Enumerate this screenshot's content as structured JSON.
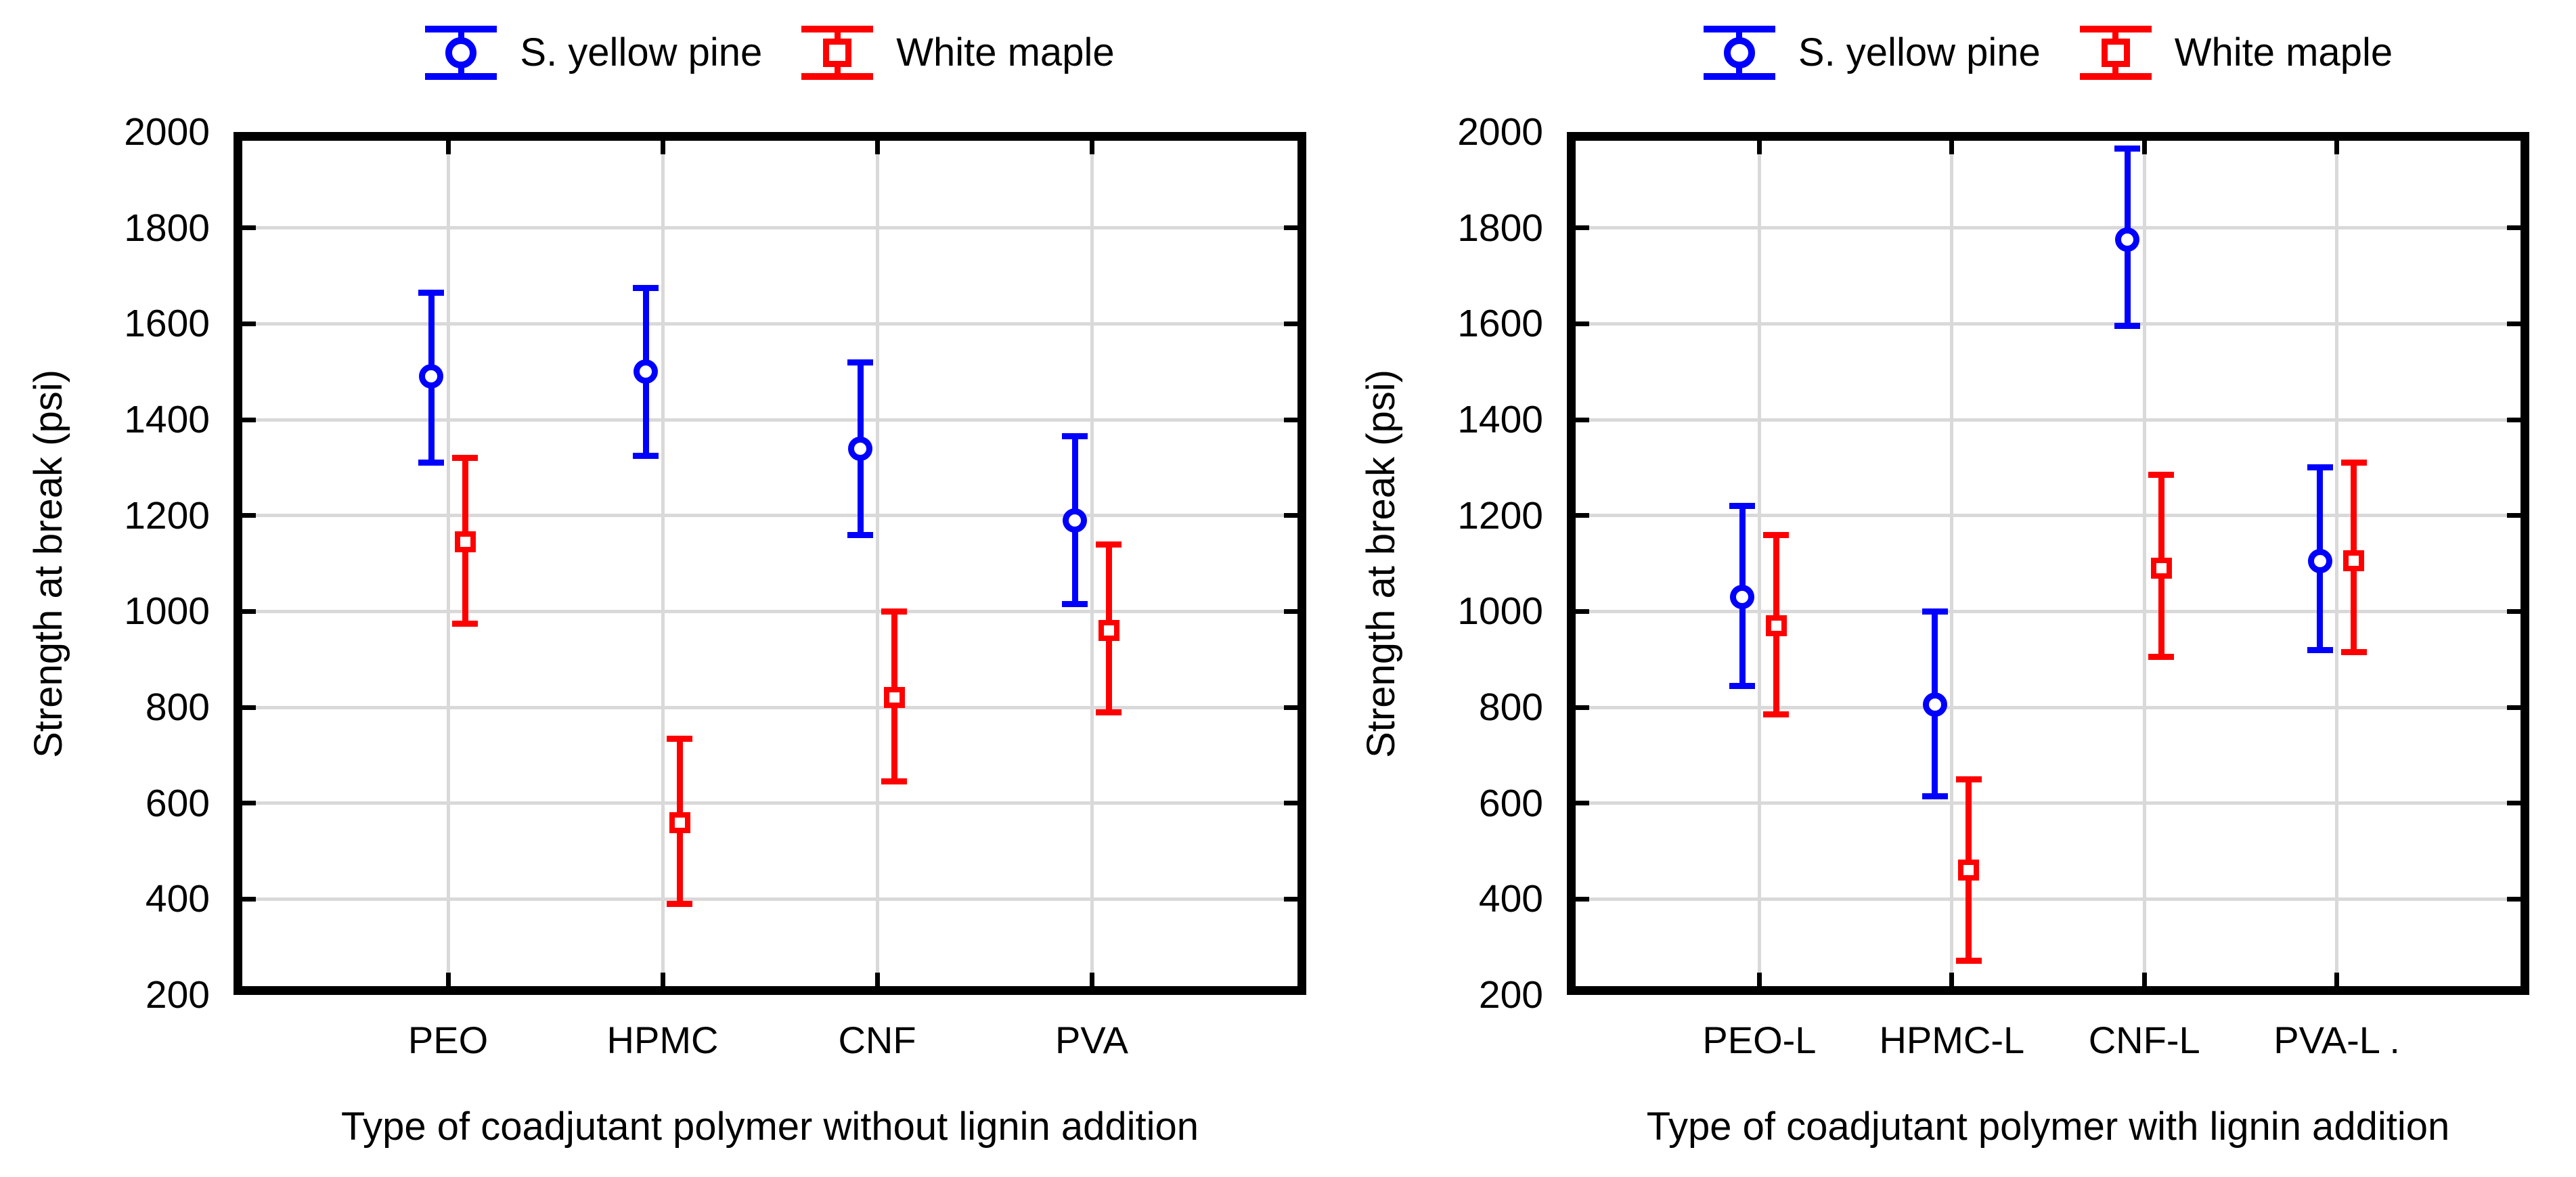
{
  "figure": {
    "background": "#ffffff",
    "text_color": "#000000",
    "grid_color": "#d9d9d9",
    "frame_color": "#000000"
  },
  "legend": {
    "items": [
      {
        "label": "S. yellow pine",
        "color": "#0000ff",
        "marker": "circle"
      },
      {
        "label": "White maple",
        "color": "#ff0000",
        "marker": "square"
      }
    ]
  },
  "chart_data": [
    {
      "type": "scatter",
      "subtype": "mean-with-error-bars",
      "title": "",
      "xlabel": "Type of coadjutant polymer without lignin addition",
      "ylabel": "Strength at break (psi)",
      "ylim": [
        200,
        2000
      ],
      "y_step": 200,
      "y_ticks": [
        "2000",
        "1800",
        "1600",
        "1400",
        "1200",
        "1000",
        "800",
        "600",
        "400",
        "200"
      ],
      "grid": true,
      "legend_position": "top-center",
      "categories": [
        "PEO",
        "HPMC",
        "CNF",
        "PVA"
      ],
      "series": [
        {
          "name": "S. yellow pine",
          "marker": "circle",
          "color": "#0000ff",
          "points": [
            {
              "category": "PEO",
              "mean": 1490,
              "lo": 1310,
              "hi": 1665
            },
            {
              "category": "HPMC",
              "mean": 1500,
              "lo": 1325,
              "hi": 1675
            },
            {
              "category": "CNF",
              "mean": 1340,
              "lo": 1160,
              "hi": 1520
            },
            {
              "category": "PVA",
              "mean": 1190,
              "lo": 1015,
              "hi": 1365
            }
          ]
        },
        {
          "name": "White maple",
          "marker": "square",
          "color": "#ff0000",
          "points": [
            {
              "category": "PEO",
              "mean": 1145,
              "lo": 975,
              "hi": 1320
            },
            {
              "category": "HPMC",
              "mean": 560,
              "lo": 390,
              "hi": 735
            },
            {
              "category": "CNF",
              "mean": 820,
              "lo": 645,
              "hi": 1000
            },
            {
              "category": "PVA",
              "mean": 960,
              "lo": 790,
              "hi": 1140
            }
          ]
        }
      ]
    },
    {
      "type": "scatter",
      "subtype": "mean-with-error-bars",
      "title": "",
      "xlabel": "Type of coadjutant polymer with lignin addition",
      "ylabel": "Strength at break (psi)",
      "ylim": [
        200,
        2000
      ],
      "y_step": 200,
      "y_ticks": [
        "2000",
        "1800",
        "1600",
        "1400",
        "1200",
        "1000",
        "800",
        "600",
        "400",
        "200"
      ],
      "grid": true,
      "legend_position": "top-center",
      "categories": [
        "PEO-L",
        "HPMC-L",
        "CNF-L",
        "PVA-L ."
      ],
      "series": [
        {
          "name": "S. yellow pine",
          "marker": "circle",
          "color": "#0000ff",
          "points": [
            {
              "category": "PEO-L",
              "mean": 1030,
              "lo": 845,
              "hi": 1220
            },
            {
              "category": "HPMC-L",
              "mean": 805,
              "lo": 615,
              "hi": 1000
            },
            {
              "category": "CNF-L",
              "mean": 1775,
              "lo": 1595,
              "hi": 1965
            },
            {
              "category": "PVA-L .",
              "mean": 1105,
              "lo": 920,
              "hi": 1300
            }
          ]
        },
        {
          "name": "White maple",
          "marker": "square",
          "color": "#ff0000",
          "points": [
            {
              "category": "PEO-L",
              "mean": 970,
              "lo": 785,
              "hi": 1160
            },
            {
              "category": "HPMC-L",
              "mean": 460,
              "lo": 272,
              "hi": 650
            },
            {
              "category": "CNF-L",
              "mean": 1090,
              "lo": 905,
              "hi": 1285
            },
            {
              "category": "PVA-L .",
              "mean": 1105,
              "lo": 915,
              "hi": 1310
            }
          ]
        }
      ]
    }
  ]
}
